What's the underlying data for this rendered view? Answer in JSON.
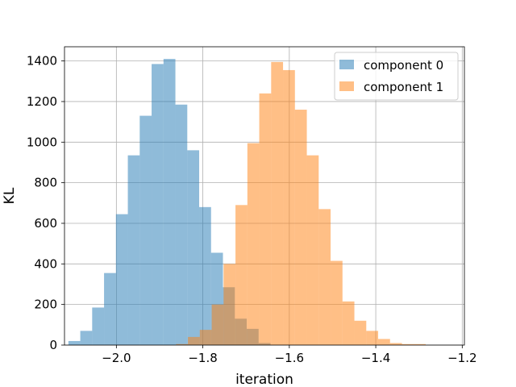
{
  "chart_data": {
    "type": "histogram",
    "xlabel": "iteration",
    "ylabel": "KL",
    "xlim": [
      -2.12,
      -1.195
    ],
    "ylim": [
      0,
      1470
    ],
    "xticks": [
      -2.0,
      -1.8,
      -1.6,
      -1.4,
      -1.2
    ],
    "xtick_labels": [
      "−2.0",
      "−1.8",
      "−1.6",
      "−1.4",
      "−1.2"
    ],
    "yticks": [
      0,
      200,
      400,
      600,
      800,
      1000,
      1200,
      1400
    ],
    "ytick_labels": [
      "0",
      "200",
      "400",
      "600",
      "800",
      "1000",
      "1200",
      "1400"
    ],
    "grid": true,
    "legend_position": "top-right",
    "series": [
      {
        "name": "component 0",
        "color": "#1f77b4",
        "opacity": 0.5,
        "bins": [
          {
            "x0": -2.111,
            "x1": -2.0835,
            "count": 20
          },
          {
            "x0": -2.0835,
            "x1": -2.056,
            "count": 70
          },
          {
            "x0": -2.056,
            "x1": -2.0285,
            "count": 185
          },
          {
            "x0": -2.0285,
            "x1": -2.001,
            "count": 355
          },
          {
            "x0": -2.001,
            "x1": -1.9735,
            "count": 645
          },
          {
            "x0": -1.9735,
            "x1": -1.946,
            "count": 935
          },
          {
            "x0": -1.946,
            "x1": -1.9185,
            "count": 1130
          },
          {
            "x0": -1.9185,
            "x1": -1.891,
            "count": 1385
          },
          {
            "x0": -1.891,
            "x1": -1.8635,
            "count": 1410
          },
          {
            "x0": -1.8635,
            "x1": -1.836,
            "count": 1185
          },
          {
            "x0": -1.836,
            "x1": -1.8085,
            "count": 960
          },
          {
            "x0": -1.8085,
            "x1": -1.781,
            "count": 680
          },
          {
            "x0": -1.781,
            "x1": -1.7535,
            "count": 455
          },
          {
            "x0": -1.7535,
            "x1": -1.726,
            "count": 285
          },
          {
            "x0": -1.726,
            "x1": -1.6985,
            "count": 130
          },
          {
            "x0": -1.6985,
            "x1": -1.671,
            "count": 80
          },
          {
            "x0": -1.671,
            "x1": -1.6435,
            "count": 10
          }
        ]
      },
      {
        "name": "component 1",
        "color": "#ff7f0e",
        "opacity": 0.5,
        "bins": [
          {
            "x0": -1.862,
            "x1": -1.8345,
            "count": 5
          },
          {
            "x0": -1.8345,
            "x1": -1.807,
            "count": 40
          },
          {
            "x0": -1.807,
            "x1": -1.7795,
            "count": 75
          },
          {
            "x0": -1.7795,
            "x1": -1.752,
            "count": 200
          },
          {
            "x0": -1.752,
            "x1": -1.7245,
            "count": 400
          },
          {
            "x0": -1.7245,
            "x1": -1.697,
            "count": 690
          },
          {
            "x0": -1.697,
            "x1": -1.6695,
            "count": 995
          },
          {
            "x0": -1.6695,
            "x1": -1.642,
            "count": 1240
          },
          {
            "x0": -1.642,
            "x1": -1.6145,
            "count": 1395
          },
          {
            "x0": -1.6145,
            "x1": -1.587,
            "count": 1355
          },
          {
            "x0": -1.587,
            "x1": -1.5595,
            "count": 1160
          },
          {
            "x0": -1.5595,
            "x1": -1.532,
            "count": 935
          },
          {
            "x0": -1.532,
            "x1": -1.5045,
            "count": 670
          },
          {
            "x0": -1.5045,
            "x1": -1.477,
            "count": 415
          },
          {
            "x0": -1.477,
            "x1": -1.4495,
            "count": 215
          },
          {
            "x0": -1.4495,
            "x1": -1.422,
            "count": 120
          },
          {
            "x0": -1.422,
            "x1": -1.3945,
            "count": 70
          },
          {
            "x0": -1.3945,
            "x1": -1.367,
            "count": 30
          },
          {
            "x0": -1.367,
            "x1": -1.3395,
            "count": 10
          },
          {
            "x0": -1.3395,
            "x1": -1.312,
            "count": 5
          },
          {
            "x0": -1.312,
            "x1": -1.2845,
            "count": 5
          }
        ]
      }
    ]
  }
}
